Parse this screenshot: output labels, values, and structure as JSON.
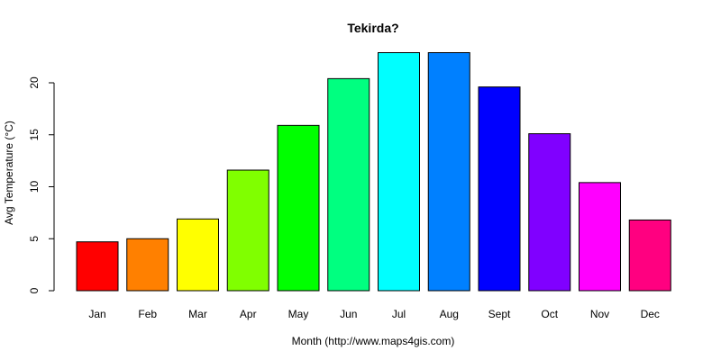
{
  "chart_data": {
    "type": "bar",
    "title": "Tekirda?",
    "xlabel": "Month (http://www.maps4gis.com)",
    "ylabel": "Avg Temperature (°C)",
    "categories": [
      "Jan",
      "Feb",
      "Mar",
      "Apr",
      "May",
      "Jun",
      "Jul",
      "Aug",
      "Sept",
      "Oct",
      "Nov",
      "Dec"
    ],
    "values": [
      4.7,
      5.0,
      6.9,
      11.6,
      15.9,
      20.4,
      22.9,
      22.9,
      19.6,
      15.1,
      10.4,
      6.8
    ],
    "colors": [
      "#ff0000",
      "#ff8000",
      "#ffff00",
      "#80ff00",
      "#00ff00",
      "#00ff80",
      "#00ffff",
      "#0080ff",
      "#0000ff",
      "#8000ff",
      "#ff00ff",
      "#ff0080"
    ],
    "yticks": [
      0,
      5,
      10,
      15,
      20
    ],
    "ylim": [
      0,
      23
    ],
    "grid": false,
    "legend": "none"
  }
}
